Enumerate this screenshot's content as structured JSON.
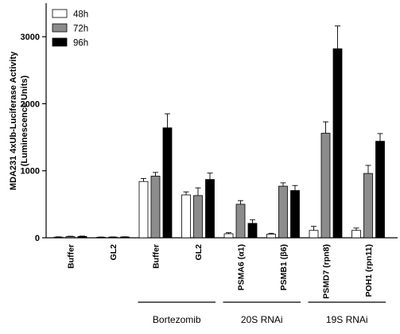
{
  "chart_data": {
    "type": "bar",
    "ylabel_line1": "MDA231 4xUb-Luciferase Activity",
    "ylabel_line2": "(Luminescence Units)",
    "ylim": [
      0,
      3500
    ],
    "yticks": [
      0,
      1000,
      2000,
      3000
    ],
    "ytick_labels": [
      "0",
      "1000",
      "2000",
      "3000"
    ],
    "grid": false,
    "legend_position": "top-left",
    "categories": [
      "Buffer",
      "GL2",
      "Buffer",
      "GL2",
      "PSMA6 (α1)",
      "PSMB1 (β6)",
      "PSMD7 (rpn8)",
      "POH1 (rpn11)"
    ],
    "series": [
      {
        "name": "48h",
        "color": "#ffffff",
        "values": [
          10,
          8,
          840,
          640,
          60,
          55,
          110,
          110
        ],
        "errors": [
          4,
          3,
          45,
          45,
          15,
          12,
          60,
          35
        ]
      },
      {
        "name": "72h",
        "color": "#8c8c8c",
        "values": [
          18,
          10,
          920,
          630,
          500,
          770,
          1560,
          960
        ],
        "errors": [
          5,
          3,
          55,
          115,
          55,
          50,
          170,
          120
        ]
      },
      {
        "name": "96h",
        "color": "#000000",
        "values": [
          20,
          12,
          1640,
          870,
          215,
          705,
          2820,
          1440
        ],
        "errors": [
          5,
          3,
          210,
          95,
          55,
          75,
          340,
          115
        ]
      }
    ],
    "groups": [
      {
        "label": "Bortezomib",
        "from": 2,
        "to": 3
      },
      {
        "label": "20S RNAi",
        "from": 4,
        "to": 5
      },
      {
        "label": "19S RNAi",
        "from": 6,
        "to": 7
      }
    ]
  }
}
